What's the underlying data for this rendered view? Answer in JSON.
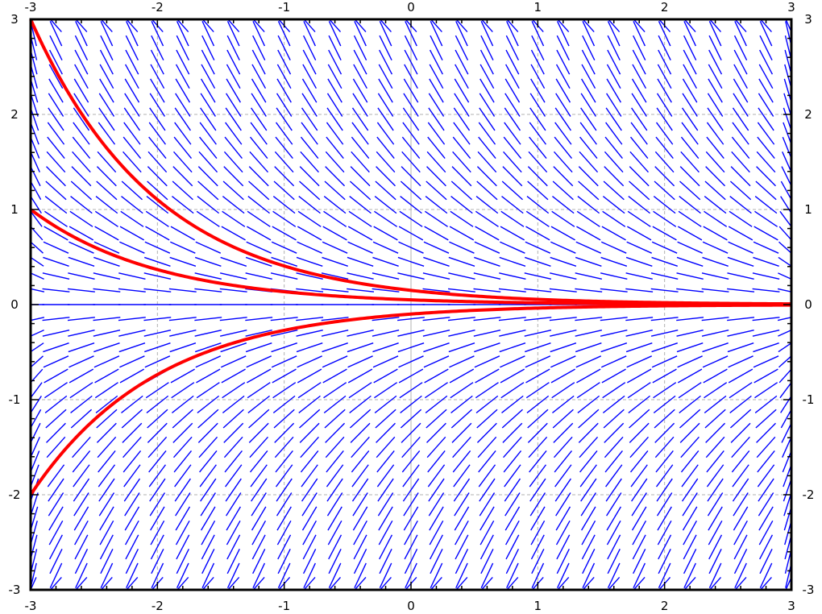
{
  "chart_data": {
    "type": "line",
    "title": "",
    "xlabel": "",
    "ylabel": "",
    "xlim": [
      -3,
      3
    ],
    "ylim": [
      -3,
      3
    ],
    "grid": true,
    "legend": "none",
    "x_ticks": [
      "-3",
      "-2",
      "-1",
      "0",
      "1",
      "2",
      "3"
    ],
    "y_ticks": [
      "3",
      "2",
      "1",
      "0",
      "-1",
      "-2",
      "-3"
    ],
    "slope_field": {
      "equation": "dy/dx = -y",
      "x_step": 0.2,
      "y_step": 0.15,
      "color": "#0000ff"
    },
    "series": [
      {
        "initial": [
          -3,
          3
        ],
        "color": "#ff0000"
      },
      {
        "initial": [
          -3,
          1
        ],
        "color": "#ff0000"
      },
      {
        "initial": [
          -3,
          -2
        ],
        "color": "#ff0000"
      }
    ]
  }
}
